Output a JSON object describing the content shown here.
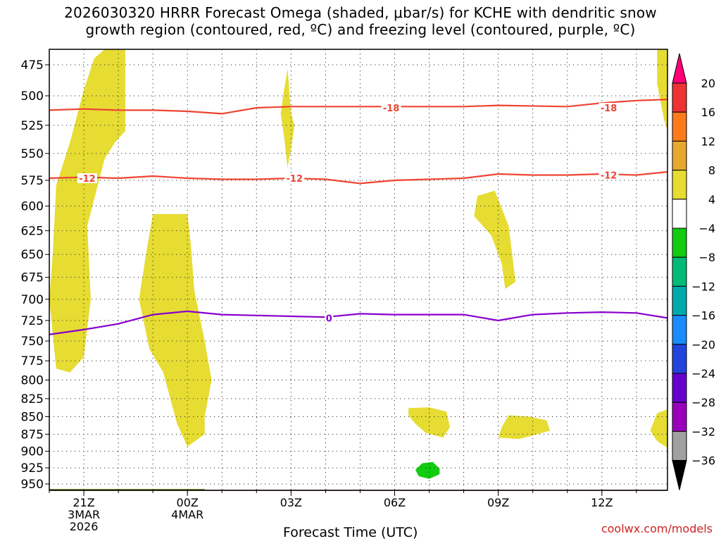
{
  "title_line1": "2026030320 HRRR Forecast Omega (shaded, μbar/s) for KCHE with dendritic snow",
  "title_line2": "growth region (contoured, red, ºC) and freezing level (contoured, purple, ºC)",
  "watermark": "coolwx.com/models",
  "chart_data": {
    "type": "heatmap",
    "title": "2026030320 HRRR Forecast Omega (shaded, μbar/s) for KCHE with dendritic snow growth region (contoured, red, ºC) and freezing level (contoured, purple, ºC)",
    "xlabel": "Forecast Time (UTC)",
    "ylabel": "",
    "x_ticks": [
      {
        "hour": 21,
        "label": [
          "21Z",
          "3MAR",
          "2026"
        ]
      },
      {
        "hour": 24,
        "label": [
          "00Z",
          "4MAR"
        ]
      },
      {
        "hour": 27,
        "label": [
          "03Z"
        ]
      },
      {
        "hour": 30,
        "label": [
          "06Z"
        ]
      },
      {
        "hour": 33,
        "label": [
          "09Z"
        ]
      },
      {
        "hour": 36,
        "label": [
          "12Z"
        ]
      }
    ],
    "xlim": [
      20,
      37.9
    ],
    "ylim_hPa": [
      960,
      463
    ],
    "y_ticks": [
      475,
      500,
      525,
      550,
      575,
      600,
      625,
      650,
      675,
      700,
      725,
      750,
      775,
      800,
      825,
      850,
      875,
      900,
      925,
      950
    ],
    "grid": true,
    "colorbar": {
      "unit": "μbar/s",
      "labels": [
        "20",
        "16",
        "12",
        "8",
        "4",
        "−4",
        "−8",
        "−12",
        "−16",
        "−20",
        "−24",
        "−28",
        "−32",
        "−36"
      ],
      "colors": [
        "#ff0077",
        "#ee3333",
        "#ff7a1a",
        "#e6a82e",
        "#e6dc32",
        "#ffffff",
        "#11cc11",
        "#00bb77",
        "#00aaaa",
        "#1a8cff",
        "#2244dd",
        "#6600cc",
        "#9900bb",
        "#a0a0a0",
        "#000000"
      ]
    },
    "contours": [
      {
        "name": "-18",
        "color": "#ee4433",
        "label_at": [
          [
            29.9,
            510
          ],
          [
            36.2,
            510
          ]
        ],
        "points": [
          [
            20,
            512
          ],
          [
            21,
            511
          ],
          [
            22,
            512
          ],
          [
            23,
            512
          ],
          [
            24,
            513
          ],
          [
            25,
            515
          ],
          [
            26,
            510
          ],
          [
            27,
            509
          ],
          [
            28,
            509
          ],
          [
            30,
            509
          ],
          [
            32,
            509
          ],
          [
            33,
            508
          ],
          [
            35,
            509
          ],
          [
            36,
            506
          ],
          [
            37,
            504
          ],
          [
            37.9,
            503
          ]
        ]
      },
      {
        "name": "-12",
        "color": "#ee4433",
        "label_at": [
          [
            21.1,
            573
          ],
          [
            27.1,
            573
          ],
          [
            36.2,
            570
          ]
        ],
        "points": [
          [
            20,
            573
          ],
          [
            21,
            572
          ],
          [
            22,
            573
          ],
          [
            23,
            571
          ],
          [
            24,
            573
          ],
          [
            25,
            574
          ],
          [
            26,
            574
          ],
          [
            27,
            573
          ],
          [
            28,
            574
          ],
          [
            29,
            578
          ],
          [
            30,
            575
          ],
          [
            31,
            574
          ],
          [
            32,
            573
          ],
          [
            33,
            569
          ],
          [
            34,
            570
          ],
          [
            35,
            570
          ],
          [
            36,
            569
          ],
          [
            37,
            570
          ],
          [
            37.9,
            567
          ]
        ]
      },
      {
        "name": "0",
        "color": "#8800cc",
        "label_at": [
          [
            28.1,
            722
          ]
        ],
        "points": [
          [
            20,
            742
          ],
          [
            21,
            736
          ],
          [
            22,
            729
          ],
          [
            23,
            718
          ],
          [
            24,
            714
          ],
          [
            25,
            718
          ],
          [
            26,
            719
          ],
          [
            27,
            720
          ],
          [
            28,
            721
          ],
          [
            29,
            717
          ],
          [
            30,
            718
          ],
          [
            31,
            718
          ],
          [
            32,
            718
          ],
          [
            33,
            725
          ],
          [
            34,
            718
          ],
          [
            35,
            716
          ],
          [
            36,
            715
          ],
          [
            37,
            716
          ],
          [
            37.9,
            722
          ]
        ]
      }
    ],
    "shaded_areas": [
      {
        "value": "4 to 8",
        "color": "#e6dc32",
        "points": [
          [
            21.6,
            463
          ],
          [
            22.2,
            463
          ],
          [
            22.2,
            495
          ],
          [
            22.2,
            530
          ],
          [
            21.9,
            540
          ],
          [
            21.6,
            555
          ],
          [
            21.1,
            620
          ],
          [
            21.2,
            700
          ],
          [
            21.0,
            770
          ],
          [
            20.6,
            790
          ],
          [
            20.2,
            785
          ],
          [
            20.0,
            700
          ],
          [
            20.1,
            650
          ],
          [
            20.2,
            580
          ],
          [
            20.6,
            540
          ],
          [
            21.0,
            495
          ],
          [
            21.3,
            470
          ]
        ]
      },
      {
        "value": "4 to 8",
        "color": "#e6dc32",
        "points": [
          [
            23.0,
            608
          ],
          [
            24.0,
            608
          ],
          [
            24.1,
            640
          ],
          [
            24.2,
            690
          ],
          [
            24.5,
            750
          ],
          [
            24.7,
            800
          ],
          [
            24.5,
            850
          ],
          [
            24.5,
            875
          ],
          [
            24.0,
            893
          ],
          [
            23.7,
            860
          ],
          [
            23.3,
            790
          ],
          [
            22.9,
            760
          ],
          [
            22.6,
            700
          ],
          [
            22.8,
            650
          ]
        ]
      },
      {
        "value": "4 to 8",
        "color": "#e6dc32",
        "points": [
          [
            26.9,
            478
          ],
          [
            27.0,
            515
          ],
          [
            27.1,
            525
          ],
          [
            27.0,
            545
          ],
          [
            26.9,
            563
          ],
          [
            26.8,
            535
          ],
          [
            26.7,
            515
          ],
          [
            26.8,
            495
          ]
        ]
      },
      {
        "value": "4 to 8",
        "color": "#e6dc32",
        "points": [
          [
            32.4,
            590
          ],
          [
            32.9,
            585
          ],
          [
            33.3,
            620
          ],
          [
            33.5,
            680
          ],
          [
            33.2,
            688
          ],
          [
            33.1,
            660
          ],
          [
            32.8,
            630
          ],
          [
            32.3,
            610
          ]
        ]
      },
      {
        "value": "4 to 8",
        "color": "#e6dc32",
        "points": [
          [
            30.4,
            838
          ],
          [
            31.0,
            837
          ],
          [
            31.5,
            843
          ],
          [
            31.6,
            865
          ],
          [
            31.4,
            880
          ],
          [
            30.9,
            873
          ],
          [
            30.6,
            860
          ],
          [
            30.4,
            848
          ]
        ]
      },
      {
        "value": "4 to 8",
        "color": "#e6dc32",
        "points": [
          [
            33.3,
            848
          ],
          [
            33.9,
            850
          ],
          [
            34.4,
            855
          ],
          [
            34.5,
            870
          ],
          [
            33.6,
            882
          ],
          [
            33.0,
            880
          ],
          [
            33.1,
            865
          ]
        ]
      },
      {
        "value": "4 to 8",
        "color": "#e6dc32",
        "points": [
          [
            37.9,
            840
          ],
          [
            37.6,
            845
          ],
          [
            37.4,
            870
          ],
          [
            37.6,
            885
          ],
          [
            37.9,
            895
          ]
        ]
      },
      {
        "value": "4 to 8",
        "color": "#e6dc32",
        "points": [
          [
            37.9,
            463
          ],
          [
            37.6,
            463
          ],
          [
            37.6,
            490
          ],
          [
            37.8,
            520
          ],
          [
            37.9,
            530
          ]
        ]
      },
      {
        "value": "-4 to -8",
        "color": "#11cc11",
        "points": [
          [
            30.8,
            918
          ],
          [
            31.1,
            916
          ],
          [
            31.3,
            926
          ],
          [
            31.3,
            935
          ],
          [
            31.0,
            942
          ],
          [
            30.7,
            938
          ],
          [
            30.6,
            928
          ]
        ]
      }
    ],
    "terrain": {
      "color": "#a0522d",
      "pressure": 960
    }
  }
}
